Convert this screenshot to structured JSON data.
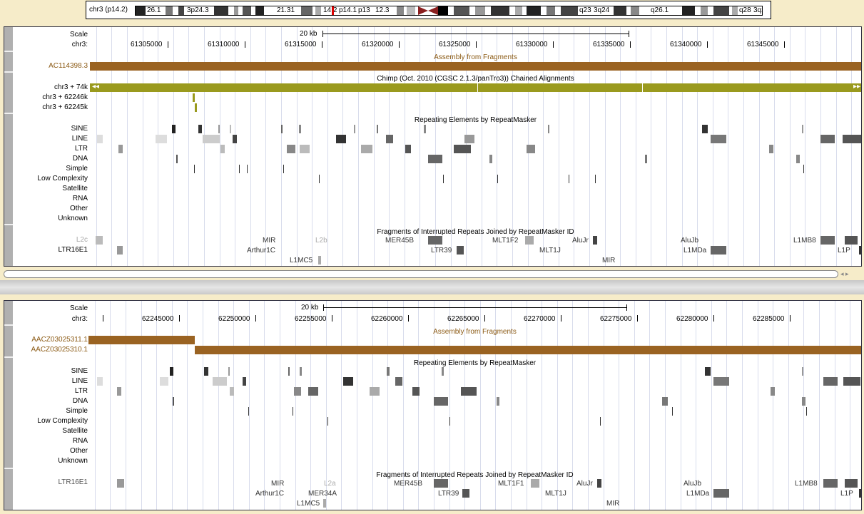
{
  "ideogram": {
    "chrom_label": "chr3 (p14.2)",
    "bands": [
      "26.1",
      "3p24.3",
      "21.31",
      "14.2",
      "p14.1",
      "p13",
      "12.3",
      "q23",
      "3q24",
      "q26.1",
      "q28",
      "3q29"
    ]
  },
  "panel1": {
    "scale_label": "Scale",
    "chrom_label": "chr3:",
    "scale_text": "20 kb",
    "positions": [
      "61305000",
      "61310000",
      "61315000",
      "61320000",
      "61325000",
      "61330000",
      "61335000",
      "61340000",
      "61345000"
    ],
    "assembly_title": "Assembly from Fragments",
    "assembly_items": [
      "AC114398.3"
    ],
    "chain_title": "Chimp (Oct. 2010 (CGSC 2.1.3/panTro3)) Chained Alignments",
    "chain_labels": [
      "chr3 + 74k",
      "chr3 + 62246k",
      "chr3 + 62245k"
    ],
    "repeat_title": "Repeating Elements by RepeatMasker",
    "repeat_classes": [
      "SINE",
      "LINE",
      "LTR",
      "DNA",
      "Simple",
      "Low Complexity",
      "Satellite",
      "RNA",
      "Other",
      "Unknown"
    ],
    "frag_title": "Fragments of Interrupted Repeats Joined by RepeatMasker ID",
    "frag_left_labels": [
      "L2c",
      "LTR16E1"
    ],
    "frag_labels": [
      "MIR",
      "L2b",
      "MER45B",
      "MLT1F2",
      "AluJr",
      "AluJb",
      "L1MB8",
      "Arthur1C",
      "LTR39",
      "MLT1J",
      "L1MDa",
      "L1P",
      "L1MC5",
      "MIR"
    ]
  },
  "panel2": {
    "scale_label": "Scale",
    "chrom_label": "chr3:",
    "scale_text": "20 kb",
    "positions": [
      "62245000",
      "62250000",
      "62255000",
      "62260000",
      "62265000",
      "62270000",
      "62275000",
      "62280000",
      "62285000"
    ],
    "assembly_title": "Assembly from Fragments",
    "assembly_items": [
      "AACZ03025311.1",
      "AACZ03025310.1"
    ],
    "repeat_title": "Repeating Elements by RepeatMasker",
    "repeat_classes": [
      "SINE",
      "LINE",
      "LTR",
      "DNA",
      "Simple",
      "Low Complexity",
      "Satellite",
      "RNA",
      "Other",
      "Unknown"
    ],
    "frag_title": "Fragments of Interrupted Repeats Joined by RepeatMasker ID",
    "frag_left_labels": [
      "LTR16E1"
    ],
    "frag_labels": [
      "MIR",
      "L2a",
      "MER45B",
      "MLT1F1",
      "AluJr",
      "AluJb",
      "L1MB8",
      "Arthur1C",
      "MER34A",
      "LTR39",
      "MLT1J",
      "L1MDa",
      "L1P",
      "L1MC5",
      "MIR"
    ]
  },
  "colors": {
    "assembly_brown": "#9a6322",
    "chain_olive": "#9a9a1e",
    "page_bg": "#f6ecc9"
  }
}
